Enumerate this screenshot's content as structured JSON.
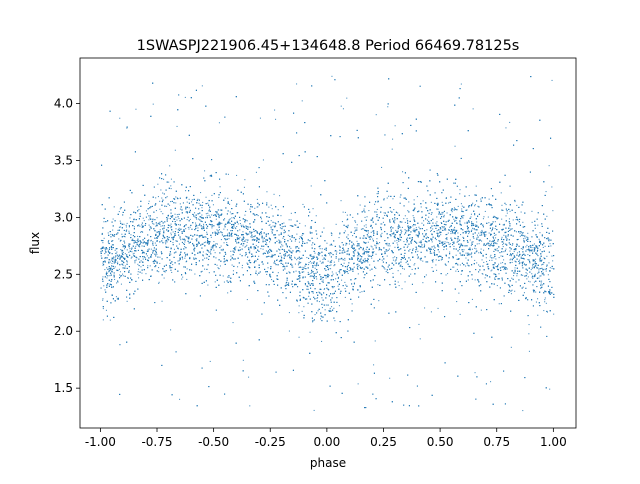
{
  "chart_data": {
    "type": "scatter",
    "title": "1SWASPJ221906.45+134648.8 Period 66469.78125s",
    "xlabel": "phase",
    "ylabel": "flux",
    "xlim": [
      -1.09,
      1.1
    ],
    "ylim": [
      1.15,
      4.4
    ],
    "xticks": [
      "-1.00",
      "-0.75",
      "-0.50",
      "-0.25",
      "0.00",
      "0.25",
      "0.50",
      "0.75",
      "1.00"
    ],
    "yticks": [
      "1.5",
      "2.0",
      "2.5",
      "3.0",
      "3.5",
      "4.0"
    ],
    "grid": false,
    "color": "#1f77b4",
    "binned_trend": {
      "phase": [
        -1.0,
        -0.9,
        -0.8,
        -0.7,
        -0.6,
        -0.5,
        -0.4,
        -0.3,
        -0.2,
        -0.1,
        0.0,
        0.1,
        0.2,
        0.3,
        0.4,
        0.5,
        0.6,
        0.7,
        0.8,
        0.9,
        1.0
      ],
      "flux": [
        2.55,
        2.7,
        2.82,
        2.87,
        2.87,
        2.85,
        2.83,
        2.78,
        2.72,
        2.6,
        2.45,
        2.65,
        2.78,
        2.85,
        2.87,
        2.85,
        2.83,
        2.78,
        2.72,
        2.62,
        2.5
      ]
    },
    "flux_scatter": 0.2,
    "outlier_flux_range": [
      1.3,
      4.25
    ]
  }
}
